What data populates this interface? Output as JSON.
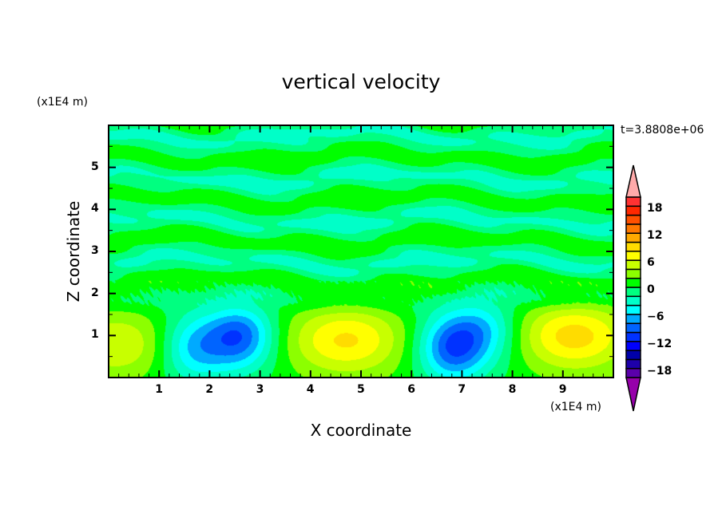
{
  "chart_data": {
    "type": "heatmap",
    "title": "vertical velocity",
    "xlabel": "X coordinate",
    "ylabel": "Z coordinate",
    "x_unit": "(x1E4 m)",
    "y_unit": "(x1E4 m)",
    "time_label": "t=3.8808e+06",
    "xlim": [
      0,
      10
    ],
    "ylim": [
      0,
      6
    ],
    "x_ticks": [
      "1",
      "2",
      "3",
      "4",
      "5",
      "6",
      "7",
      "8",
      "9"
    ],
    "y_ticks": [
      "1",
      "2",
      "3",
      "4",
      "5"
    ],
    "colorbar": {
      "levels": [
        -20,
        -18,
        -16,
        -14,
        -12,
        -10,
        -8,
        -6,
        -4,
        -2,
        0,
        2,
        4,
        6,
        8,
        10,
        12,
        14,
        16,
        18,
        20
      ],
      "tick_labels": [
        "18",
        "12",
        "6",
        "0",
        "-6",
        "-12",
        "-18"
      ],
      "tick_values": [
        18,
        12,
        6,
        0,
        -6,
        -12,
        -18
      ],
      "colors": [
        "#5a00aa",
        "#1e00aa",
        "#0000aa",
        "#0000ff",
        "#0032ff",
        "#0064ff",
        "#00aaff",
        "#00ffff",
        "#00ffc8",
        "#00ff80",
        "#00ff00",
        "#8cff00",
        "#c8ff00",
        "#ffff00",
        "#ffdc00",
        "#ffaa00",
        "#ff7800",
        "#ff5000",
        "#ff2800",
        "#ff3232"
      ],
      "over_color": "#ffaaaa",
      "under_color": "#9600aa"
    },
    "features": [
      {
        "kind": "updraft",
        "x": 0.2,
        "z": 0.8,
        "peak": 5
      },
      {
        "kind": "downdraft",
        "x": 1.7,
        "z": 0.7,
        "peak": -6
      },
      {
        "kind": "downdraft",
        "x": 2.6,
        "z": 1.0,
        "peak": -9
      },
      {
        "kind": "updraft",
        "x": 4.7,
        "z": 0.9,
        "peak": 6
      },
      {
        "kind": "downdraft",
        "x": 6.8,
        "z": 0.7,
        "peak": -9
      },
      {
        "kind": "downdraft",
        "x": 7.4,
        "z": 1.2,
        "peak": -5
      },
      {
        "kind": "updraft",
        "x": 9.2,
        "z": 1.0,
        "peak": 7
      }
    ]
  }
}
